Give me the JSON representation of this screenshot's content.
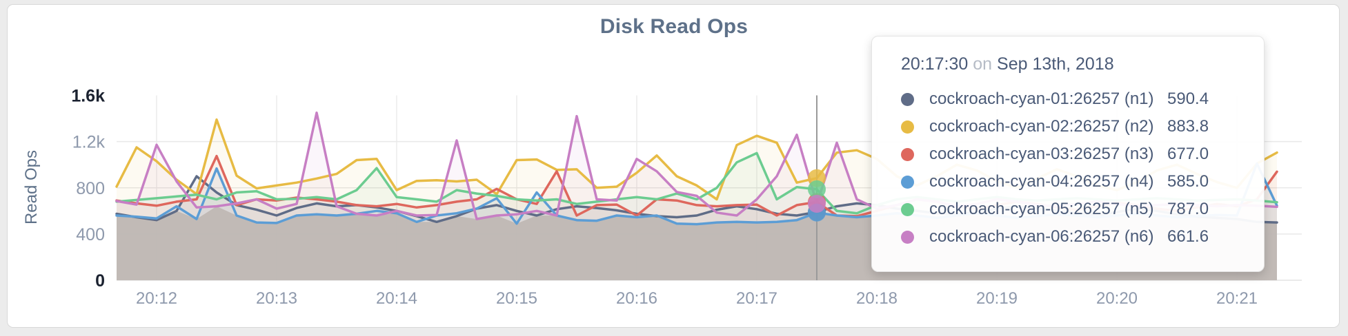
{
  "panel": {
    "background": "#ffffff",
    "page_background": "#ececec",
    "border_color": "#d8d8d8"
  },
  "chart_data": {
    "type": "line",
    "title": "Disk Read Ops",
    "ylabel": "Read Ops",
    "xlabel": "",
    "ylim": [
      0,
      1600
    ],
    "grid": true,
    "legend_position": "tooltip",
    "x_start": "20:11:40",
    "x_step_seconds": 10,
    "x_ticks": [
      {
        "label": "20:12",
        "t": 20
      },
      {
        "label": "20:13",
        "t": 80
      },
      {
        "label": "20:14",
        "t": 140
      },
      {
        "label": "20:15",
        "t": 200
      },
      {
        "label": "20:16",
        "t": 260
      },
      {
        "label": "20:17",
        "t": 320
      },
      {
        "label": "20:18",
        "t": 380
      },
      {
        "label": "20:19",
        "t": 440
      },
      {
        "label": "20:20",
        "t": 500
      },
      {
        "label": "20:21",
        "t": 560
      }
    ],
    "y_ticks": [
      {
        "label": "0",
        "value": 0,
        "emphasis": true
      },
      {
        "label": "400",
        "value": 400,
        "emphasis": false
      },
      {
        "label": "800",
        "value": 800,
        "emphasis": false
      },
      {
        "label": "1.2k",
        "value": 1200,
        "emphasis": false
      },
      {
        "label": "1.6k",
        "value": 1600,
        "emphasis": true
      }
    ],
    "series": [
      {
        "name": "cockroach-cyan-01:26257 (n1)",
        "short": "n1",
        "color": "#5F6C87",
        "values": [
          575,
          545,
          520,
          600,
          900,
          760,
          650,
          610,
          560,
          625,
          665,
          640,
          650,
          630,
          600,
          555,
          505,
          555,
          620,
          650,
          600,
          560,
          615,
          640,
          625,
          605,
          575,
          555,
          545,
          560,
          610,
          640,
          615,
          575,
          560,
          590.4,
          640,
          665,
          650,
          620,
          600,
          580,
          570,
          590,
          620,
          640,
          620,
          600,
          580,
          560,
          590,
          620,
          600,
          570,
          550,
          540,
          530,
          505,
          500
        ]
      },
      {
        "name": "cockroach-cyan-02:26257 (n2)",
        "short": "n2",
        "color": "#E7BB44",
        "values": [
          810,
          1150,
          1030,
          870,
          745,
          1390,
          905,
          795,
          820,
          845,
          880,
          920,
          1040,
          1050,
          780,
          860,
          865,
          855,
          870,
          745,
          1040,
          1045,
          955,
          960,
          800,
          810,
          930,
          1080,
          900,
          820,
          700,
          1170,
          1250,
          1190,
          845,
          883.8,
          1104,
          1125,
          1050,
          900,
          820,
          900,
          1000,
          950,
          860,
          800,
          880,
          960,
          900,
          820,
          780,
          850,
          950,
          1000,
          920,
          850,
          800,
          1010,
          1105
        ]
      },
      {
        "name": "cockroach-cyan-03:26257 (n3)",
        "short": "n3",
        "color": "#DE675D",
        "values": [
          690,
          665,
          645,
          680,
          700,
          1075,
          650,
          700,
          690,
          715,
          700,
          680,
          650,
          640,
          660,
          630,
          650,
          680,
          700,
          790,
          700,
          660,
          943,
          560,
          650,
          655,
          560,
          700,
          690,
          650,
          640,
          650,
          655,
          560,
          650,
          677,
          560,
          555,
          600,
          650,
          700,
          680,
          640,
          620,
          650,
          680,
          660,
          630,
          610,
          640,
          670,
          650,
          620,
          600,
          630,
          660,
          640,
          700,
          940
        ]
      },
      {
        "name": "cockroach-cyan-04:26257 (n4)",
        "short": "n4",
        "color": "#5C9DD5",
        "values": [
          560,
          550,
          535,
          640,
          530,
          967,
          560,
          500,
          495,
          560,
          570,
          560,
          575,
          600,
          580,
          505,
          560,
          580,
          620,
          710,
          490,
          760,
          560,
          520,
          515,
          560,
          545,
          560,
          490,
          485,
          500,
          505,
          500,
          505,
          520,
          585,
          560,
          545,
          560,
          580,
          560,
          540,
          560,
          580,
          560,
          540,
          555,
          570,
          560,
          545,
          560,
          575,
          560,
          545,
          555,
          565,
          560,
          1010,
          645
        ]
      },
      {
        "name": "cockroach-cyan-05:26257 (n5)",
        "short": "n5",
        "color": "#6CCC90",
        "values": [
          680,
          695,
          710,
          725,
          740,
          700,
          760,
          770,
          700,
          705,
          720,
          700,
          780,
          970,
          720,
          700,
          680,
          780,
          750,
          730,
          700,
          690,
          700,
          660,
          680,
          700,
          720,
          700,
          750,
          700,
          800,
          1020,
          1100,
          700,
          806,
          787,
          600,
          580,
          650,
          700,
          720,
          700,
          680,
          700,
          720,
          700,
          690,
          700,
          710,
          700,
          690,
          700,
          710,
          700,
          690,
          695,
          700,
          690,
          675
        ]
      },
      {
        "name": "cockroach-cyan-06:26257 (n6)",
        "short": "n6",
        "color": "#C77FC4",
        "values": [
          685,
          655,
          1172,
          855,
          630,
          640,
          665,
          700,
          620,
          660,
          1450,
          640,
          575,
          560,
          600,
          560,
          565,
          1210,
          530,
          560,
          570,
          600,
          560,
          1420,
          700,
          690,
          1050,
          943,
          764,
          730,
          585,
          560,
          700,
          900,
          1259,
          661.6,
          1190,
          700,
          620,
          650,
          700,
          680,
          640,
          660,
          700,
          680,
          650,
          640,
          660,
          680,
          660,
          640,
          650,
          660,
          650,
          640,
          650,
          645,
          635
        ]
      }
    ],
    "hover": {
      "index": 35,
      "t": 350,
      "time_label": "20:17:30",
      "guideline_color": "#9a9a9a"
    },
    "colors": {
      "grid_horizontal": "#e8e8e8",
      "grid_vertical": "#ececec",
      "axis_line": "#e3e3e3",
      "tick_text": "#8E99AC",
      "tick_text_emphasis": "#1b2230",
      "title_text": "#5E7189",
      "min_envelope_fill": "#d5d1c9"
    }
  },
  "tooltip": {
    "time": "20:17:30",
    "connector": "on",
    "date": "Sep 13th, 2018",
    "rows": [
      {
        "label": "cockroach-cyan-01:26257 (n1)",
        "value": "590.4",
        "color": "#5F6C87"
      },
      {
        "label": "cockroach-cyan-02:26257 (n2)",
        "value": "883.8",
        "color": "#E7BB44"
      },
      {
        "label": "cockroach-cyan-03:26257 (n3)",
        "value": "677.0",
        "color": "#DE675D"
      },
      {
        "label": "cockroach-cyan-04:26257 (n4)",
        "value": "585.0",
        "color": "#5C9DD5"
      },
      {
        "label": "cockroach-cyan-05:26257 (n5)",
        "value": "787.0",
        "color": "#6CCC90"
      },
      {
        "label": "cockroach-cyan-06:26257 (n6)",
        "value": "661.6",
        "color": "#C77FC4"
      }
    ]
  }
}
